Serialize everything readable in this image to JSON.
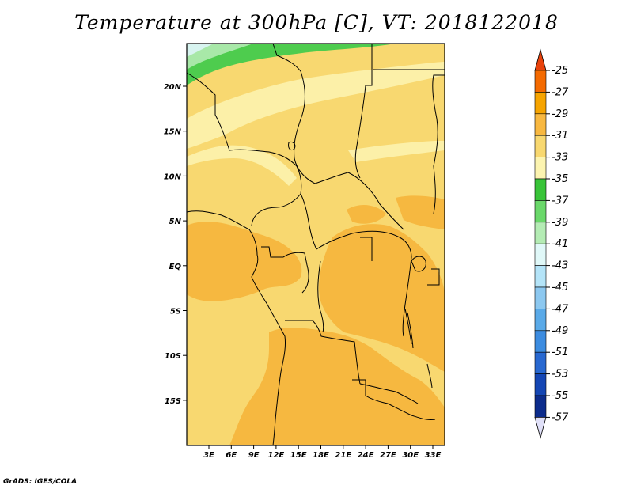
{
  "title": "Temperature at 300hPa [C], VT: 2018122018",
  "credit": "GrADS: IGES/COLA",
  "lat_labels": [
    "20N",
    "15N",
    "10N",
    "5N",
    "EQ",
    "5S",
    "10S",
    "15S"
  ],
  "lon_labels": [
    "3E",
    "6E",
    "9E",
    "12E",
    "15E",
    "18E",
    "21E",
    "24E",
    "27E",
    "30E",
    "33E"
  ],
  "colorbar": {
    "labels": [
      "-25",
      "-27",
      "-29",
      "-31",
      "-33",
      "-35",
      "-37",
      "-39",
      "-41",
      "-43",
      "-45",
      "-47",
      "-49",
      "-51",
      "-53",
      "-55",
      "-57"
    ],
    "colors": [
      "#e8420c",
      "#f46a00",
      "#f6a400",
      "#f8b840",
      "#f8d870",
      "#fcf4b0",
      "#38c438",
      "#6ad86a",
      "#b4ecb4",
      "#e0f8f8",
      "#b4e4f8",
      "#8cc8f0",
      "#5aaae8",
      "#3c8ce0",
      "#2868d0",
      "#1446b4",
      "#0c2c8c"
    ],
    "top_color": "#e8420c",
    "bottom_color": "#e0e0f8"
  },
  "map_colors": {
    "base": "#f8d870",
    "warm": "#f6b840",
    "pale": "#fcf0a8",
    "cold_band": "#4ecc4e",
    "cold_light": "#a8e8a8",
    "cold_lightest": "#d8f4f0"
  }
}
